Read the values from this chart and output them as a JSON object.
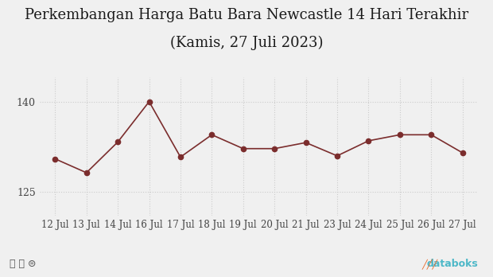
{
  "title_line1": "Perkembangan Harga Batu Bara Newcastle 14 Hari Terakhir",
  "title_line2": "(Kamis, 27 Juli 2023)",
  "x_labels": [
    "12 Jul",
    "13 Jul",
    "14 Jul",
    "16 Jul",
    "17 Jul",
    "18 Jul",
    "19 Jul",
    "20 Jul",
    "21 Jul",
    "23 Jul",
    "24 Jul",
    "25 Jul",
    "26 Jul",
    "27 Jul"
  ],
  "values": [
    130.5,
    128.2,
    133.3,
    140.0,
    130.8,
    134.5,
    132.2,
    132.2,
    133.2,
    131.0,
    133.5,
    134.5,
    134.5,
    131.5
  ],
  "line_color": "#7B2D2D",
  "marker_color": "#7B2D2D",
  "bg_color": "#f0f0f0",
  "plot_bg_color": "#f0f0f0",
  "grid_color": "#cccccc",
  "yticks": [
    125,
    140
  ],
  "ylim": [
    121,
    144
  ],
  "title_fontsize": 13,
  "tick_fontsize": 8.5,
  "ytick_fontsize": 9,
  "tick_color": "#444444",
  "bottom_text_left": "©Ⓑ⊜",
  "bottom_text_right": "databoks"
}
